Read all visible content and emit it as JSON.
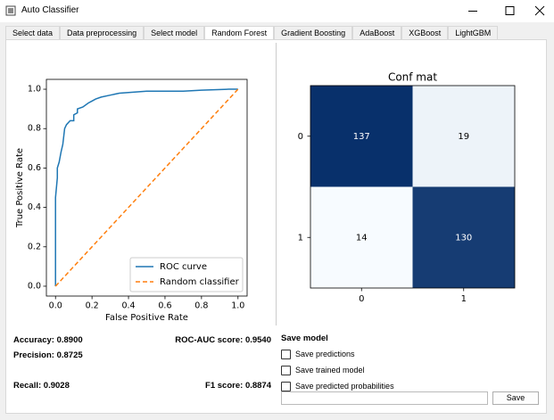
{
  "window": {
    "title": "Auto Classifier"
  },
  "tabs": [
    "Select data",
    "Data preprocessing",
    "Select model",
    "Random Forest",
    "Gradient Boosting",
    "AdaBoost",
    "XGBoost",
    "LightGBM"
  ],
  "active_tab": 3,
  "chart_data": [
    {
      "type": "line",
      "xlabel": "False Positive Rate",
      "ylabel": "True Positive Rate",
      "xlim": [
        -0.05,
        1.05
      ],
      "ylim": [
        -0.05,
        1.05
      ],
      "xticks": [
        {
          "value": 0,
          "label": "0.0"
        },
        {
          "value": 0.2,
          "label": "0.2"
        },
        {
          "value": 0.4,
          "label": "0.4"
        },
        {
          "value": 0.6,
          "label": "0.6"
        },
        {
          "value": 0.8,
          "label": "0.8"
        },
        {
          "value": 1,
          "label": "1.0"
        }
      ],
      "yticks": [
        {
          "value": 0,
          "label": "0.0"
        },
        {
          "value": 0.2,
          "label": "0.2"
        },
        {
          "value": 0.4,
          "label": "0.4"
        },
        {
          "value": 0.6,
          "label": "0.6"
        },
        {
          "value": 0.8,
          "label": "0.8"
        },
        {
          "value": 1,
          "label": "1.0"
        }
      ],
      "legend": "lower right",
      "series": [
        {
          "name": "ROC curve",
          "color": "#1f77b4",
          "linestyle": "solid",
          "x": [
            0,
            0,
            0.01,
            0.01,
            0.02,
            0.03,
            0.04,
            0.05,
            0.06,
            0.08,
            0.1,
            0.1,
            0.12,
            0.12,
            0.15,
            0.18,
            0.2,
            0.22,
            0.25,
            0.3,
            0.35,
            0.5,
            0.7,
            0.8,
            0.95,
            1.0
          ],
          "values": [
            0,
            0.45,
            0.55,
            0.6,
            0.63,
            0.68,
            0.72,
            0.8,
            0.82,
            0.84,
            0.84,
            0.87,
            0.88,
            0.9,
            0.91,
            0.93,
            0.94,
            0.95,
            0.96,
            0.97,
            0.98,
            0.99,
            0.99,
            0.995,
            1.0,
            1.0
          ]
        },
        {
          "name": "Random classifier",
          "color": "#ff7f0e",
          "linestyle": "dashed",
          "x": [
            0,
            1
          ],
          "values": [
            0,
            1
          ]
        }
      ]
    },
    {
      "type": "heatmap",
      "title": "Conf mat",
      "x_categories": [
        "0",
        "1"
      ],
      "y_categories": [
        "0",
        "1"
      ],
      "values": [
        [
          137,
          19
        ],
        [
          14,
          130
        ]
      ],
      "color_low": "#f7fbff",
      "color_high": "#08306b"
    }
  ],
  "metrics": [
    {
      "label": "Accuracy:",
      "value": "0.8900"
    },
    {
      "label": "ROC-AUC score:",
      "value": "0.9540"
    },
    {
      "label": "Precision:",
      "value": "0.8725"
    },
    {
      "label": "Recall:",
      "value": "0.9028"
    },
    {
      "label": "F1 score:",
      "value": "0.8874"
    }
  ],
  "save_panel": {
    "title": "Save model",
    "options": [
      "Save predictions",
      "Save trained model",
      "Save predicted probabilities"
    ],
    "button": "Save"
  }
}
